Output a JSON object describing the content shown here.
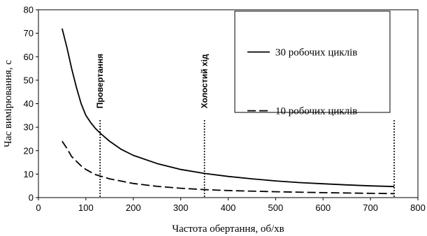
{
  "chart_data": {
    "type": "line",
    "title": "",
    "xlabel": "Частота обертання, об/хв",
    "ylabel": "Час вимірювання, с",
    "xlim": [
      0,
      800
    ],
    "ylim": [
      0,
      80
    ],
    "xticks": [
      0,
      100,
      200,
      300,
      400,
      500,
      600,
      700,
      800
    ],
    "yticks": [
      0,
      10,
      20,
      30,
      40,
      50,
      60,
      70,
      80
    ],
    "grid": false,
    "legend": "top-right",
    "series": [
      {
        "name": "30 робочих циклів",
        "style": "solid",
        "x": [
          50,
          60,
          70,
          80,
          90,
          100,
          110,
          120,
          130,
          150,
          175,
          200,
          250,
          300,
          350,
          400,
          450,
          500,
          550,
          600,
          650,
          700,
          750
        ],
        "y": [
          72,
          64,
          55,
          47,
          40,
          35,
          32,
          29.5,
          27.5,
          24,
          20.5,
          18,
          14.5,
          12,
          10.3,
          9,
          8,
          7.1,
          6.4,
          5.9,
          5.4,
          5,
          4.7
        ]
      },
      {
        "name": "10 робочих циклів",
        "style": "dashed",
        "x": [
          50,
          60,
          70,
          80,
          90,
          100,
          120,
          150,
          200,
          250,
          300,
          350,
          400,
          500,
          600,
          700,
          750
        ],
        "y": [
          24,
          21,
          17.5,
          15.5,
          13.5,
          12,
          9.8,
          8,
          6,
          4.8,
          4,
          3.4,
          3,
          2.5,
          2.1,
          1.8,
          1.7
        ]
      }
    ],
    "markers": [
      {
        "x": 130,
        "label": "Провертання"
      },
      {
        "x": 350,
        "label": "Холостий хід"
      },
      {
        "x": 750,
        "label": ""
      }
    ]
  }
}
